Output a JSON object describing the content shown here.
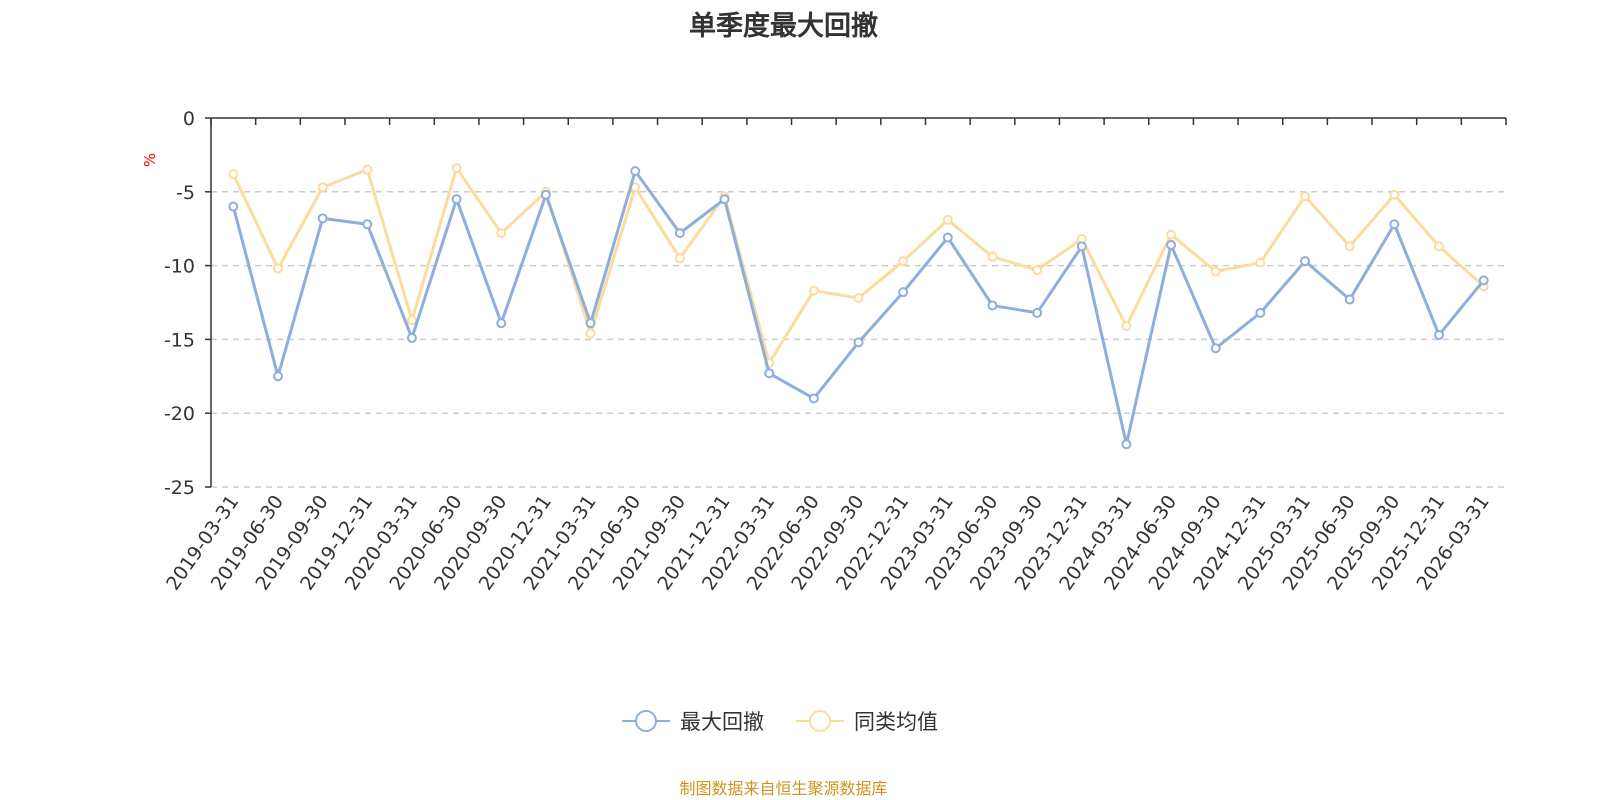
{
  "chart_data": {
    "type": "line",
    "title": "单季度最大回撤",
    "ylabel": "%",
    "ylim": [
      -25,
      0
    ],
    "yticks": [
      0,
      -5,
      -10,
      -15,
      -20,
      -25
    ],
    "grid": true,
    "legend_position": "bottom",
    "categories": [
      "2019-03-31",
      "2019-06-30",
      "2019-09-30",
      "2019-12-31",
      "2020-03-31",
      "2020-06-30",
      "2020-09-30",
      "2020-12-31",
      "2021-03-31",
      "2021-06-30",
      "2021-09-30",
      "2021-12-31",
      "2022-03-31",
      "2022-06-30",
      "2022-09-30",
      "2022-12-31",
      "2023-03-31",
      "2023-06-30",
      "2023-09-30",
      "2023-12-31",
      "2024-03-31",
      "2024-06-30",
      "2024-09-30",
      "2024-12-31",
      "2025-03-31",
      "2025-06-30",
      "2025-09-30",
      "2025-12-31",
      "2026-03-31"
    ],
    "series": [
      {
        "name": "最大回撤",
        "color": "#8eaedb",
        "values": [
          -6.0,
          -17.5,
          -6.8,
          -7.2,
          -14.9,
          -5.5,
          -13.9,
          -5.2,
          -13.9,
          -3.6,
          -7.8,
          -5.5,
          -17.3,
          -19.0,
          -15.2,
          -11.8,
          -8.1,
          -12.7,
          -13.2,
          -8.7,
          -22.1,
          -8.6,
          -15.6,
          -13.2,
          -9.7,
          -12.3,
          -7.2,
          -14.7,
          -11.0
        ]
      },
      {
        "name": "同类均值",
        "color": "#fcdc9d",
        "values": [
          -3.8,
          -10.2,
          -4.7,
          -3.5,
          -13.7,
          -3.4,
          -7.8,
          -5.0,
          -14.6,
          -4.7,
          -9.5,
          -5.3,
          -16.6,
          -11.7,
          -12.2,
          -9.7,
          -6.9,
          -9.4,
          -10.3,
          -8.2,
          -14.1,
          -7.9,
          -10.4,
          -9.8,
          -5.3,
          -8.7,
          -5.2,
          -8.7,
          -11.4
        ]
      }
    ]
  },
  "source_note": "制图数据来自恒生聚源数据库"
}
